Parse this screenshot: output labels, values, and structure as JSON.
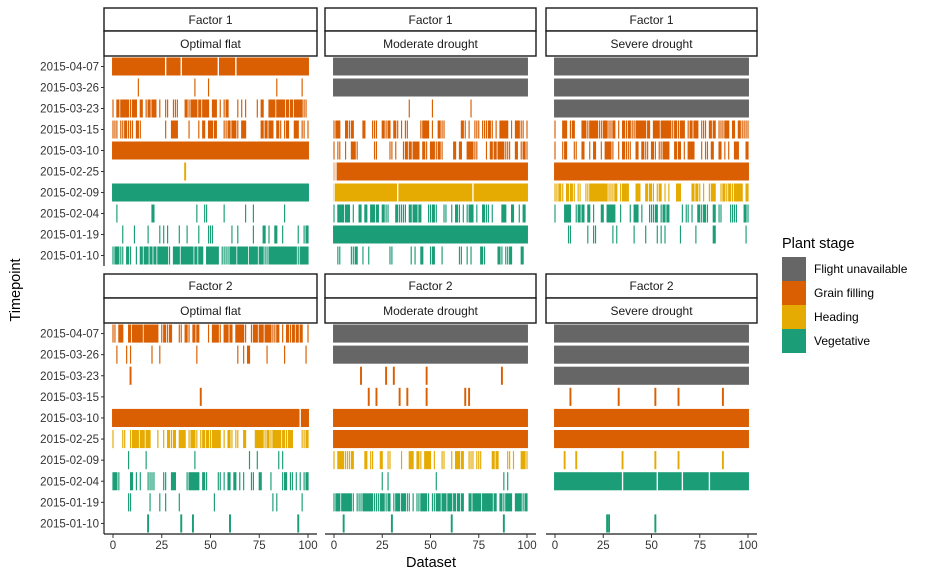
{
  "chart_data": {
    "type": "tile",
    "xlabel": "Dataset",
    "ylabel": "Timepoint",
    "xlim": [
      0,
      100
    ],
    "x_ticks": [
      0,
      25,
      50,
      75,
      100
    ],
    "timepoints": [
      "2015-04-07",
      "2015-03-26",
      "2015-03-23",
      "2015-03-15",
      "2015-03-10",
      "2015-02-25",
      "2015-02-09",
      "2015-02-04",
      "2015-01-19",
      "2015-01-10"
    ],
    "legend": {
      "title": "Plant stage",
      "entries": [
        {
          "label": "Flight unavailable",
          "color": "#666666"
        },
        {
          "label": "Grain filling",
          "color": "#d95f02"
        },
        {
          "label": "Heading",
          "color": "#e6ab02"
        },
        {
          "label": "Vegetative",
          "color": "#1b9e77"
        }
      ]
    },
    "facets": [
      {
        "factor": "Factor 1",
        "scenario": "Optimal flat",
        "rows": [
          {
            "t": "2015-04-07",
            "stage": "Grain filling",
            "cover": "full",
            "exclude": [
              27,
              35,
              54,
              63
            ]
          },
          {
            "t": "2015-03-26",
            "stage": "Grain filling",
            "cover": "sparse",
            "density": 0.03,
            "seed": 101
          },
          {
            "t": "2015-03-23",
            "stage": "Grain filling",
            "cover": "sparse",
            "density": 0.6,
            "seed": 102
          },
          {
            "t": "2015-03-15",
            "stage": "Grain filling",
            "cover": "sparse",
            "density": 0.55,
            "seed": 103
          },
          {
            "t": "2015-03-10",
            "stage": "Grain filling",
            "cover": "full",
            "exclude": []
          },
          {
            "t": "2015-02-25",
            "stage": "Heading",
            "cover": "list",
            "items": [
              37
            ]
          },
          {
            "t": "2015-02-09",
            "stage": "Vegetative",
            "cover": "full",
            "exclude": []
          },
          {
            "t": "2015-02-04",
            "stage": "Vegetative",
            "cover": "sparse",
            "density": 0.15,
            "seed": 104
          },
          {
            "t": "2015-01-19",
            "stage": "Vegetative",
            "cover": "sparse",
            "density": 0.25,
            "seed": 105
          },
          {
            "t": "2015-01-10",
            "stage": "Vegetative",
            "cover": "sparse",
            "density": 0.75,
            "seed": 106
          }
        ]
      },
      {
        "factor": "Factor 1",
        "scenario": "Moderate drought",
        "rows": [
          {
            "t": "2015-04-07",
            "stage": "Flight unavailable",
            "cover": "full",
            "exclude": []
          },
          {
            "t": "2015-03-26",
            "stage": "Flight unavailable",
            "cover": "full",
            "exclude": []
          },
          {
            "t": "2015-03-23",
            "stage": "Grain filling",
            "cover": "sparse",
            "density": 0.04,
            "seed": 201
          },
          {
            "t": "2015-03-15",
            "stage": "Grain filling",
            "cover": "sparse",
            "density": 0.35,
            "seed": 202
          },
          {
            "t": "2015-03-10",
            "stage": "Grain filling",
            "cover": "sparse",
            "density": 0.45,
            "seed": 203
          },
          {
            "t": "2015-02-25",
            "stage": "Grain filling",
            "cover": "full",
            "exclude": [
              0,
              1
            ]
          },
          {
            "t": "2015-02-09",
            "stage": "Heading",
            "cover": "full",
            "exclude": [
              0,
              33,
              72
            ]
          },
          {
            "t": "2015-02-04",
            "stage": "Vegetative",
            "cover": "sparse",
            "density": 0.5,
            "seed": 204
          },
          {
            "t": "2015-01-19",
            "stage": "Vegetative",
            "cover": "full",
            "exclude": []
          },
          {
            "t": "2015-01-10",
            "stage": "Vegetative",
            "cover": "sparse",
            "density": 0.3,
            "seed": 205
          }
        ]
      },
      {
        "factor": "Factor 1",
        "scenario": "Severe drought",
        "rows": [
          {
            "t": "2015-04-07",
            "stage": "Flight unavailable",
            "cover": "full",
            "exclude": []
          },
          {
            "t": "2015-03-26",
            "stage": "Flight unavailable",
            "cover": "full",
            "exclude": []
          },
          {
            "t": "2015-03-23",
            "stage": "Flight unavailable",
            "cover": "full",
            "exclude": []
          },
          {
            "t": "2015-03-15",
            "stage": "Grain filling",
            "cover": "sparse",
            "density": 0.72,
            "seed": 301
          },
          {
            "t": "2015-03-10",
            "stage": "Grain filling",
            "cover": "sparse",
            "density": 0.55,
            "seed": 302
          },
          {
            "t": "2015-02-25",
            "stage": "Grain filling",
            "cover": "full",
            "exclude": []
          },
          {
            "t": "2015-02-09",
            "stage": "Heading",
            "cover": "sparse",
            "density": 0.5,
            "seed": 303
          },
          {
            "t": "2015-02-04",
            "stage": "Vegetative",
            "cover": "sparse",
            "density": 0.45,
            "seed": 304
          },
          {
            "t": "2015-01-19",
            "stage": "Vegetative",
            "cover": "sparse",
            "density": 0.15,
            "seed": 305
          },
          {
            "t": "2015-01-10",
            "stage": "Vegetative",
            "cover": "none"
          }
        ]
      },
      {
        "factor": "Factor 2",
        "scenario": "Optimal flat",
        "rows": [
          {
            "t": "2015-04-07",
            "stage": "Grain filling",
            "cover": "sparse",
            "density": 0.6,
            "seed": 401
          },
          {
            "t": "2015-03-26",
            "stage": "Grain filling",
            "cover": "sparse",
            "density": 0.12,
            "seed": 402
          },
          {
            "t": "2015-03-23",
            "stage": "Grain filling",
            "cover": "list",
            "items": [
              9
            ]
          },
          {
            "t": "2015-03-15",
            "stage": "Grain filling",
            "cover": "list",
            "items": [
              45
            ]
          },
          {
            "t": "2015-03-10",
            "stage": "Grain filling",
            "cover": "full",
            "exclude": [
              96
            ]
          },
          {
            "t": "2015-02-25",
            "stage": "Heading",
            "cover": "sparse",
            "density": 0.55,
            "seed": 403
          },
          {
            "t": "2015-02-09",
            "stage": "Vegetative",
            "cover": "sparse",
            "density": 0.1,
            "seed": 404
          },
          {
            "t": "2015-02-04",
            "stage": "Vegetative",
            "cover": "sparse",
            "density": 0.4,
            "seed": 405
          },
          {
            "t": "2015-01-19",
            "stage": "Vegetative",
            "cover": "sparse",
            "density": 0.08,
            "seed": 406
          },
          {
            "t": "2015-01-10",
            "stage": "Vegetative",
            "cover": "list",
            "items": [
              18,
              35,
              41,
              60,
              95
            ]
          }
        ]
      },
      {
        "factor": "Factor 2",
        "scenario": "Moderate drought",
        "rows": [
          {
            "t": "2015-04-07",
            "stage": "Flight unavailable",
            "cover": "full",
            "exclude": []
          },
          {
            "t": "2015-03-26",
            "stage": "Flight unavailable",
            "cover": "full",
            "exclude": []
          },
          {
            "t": "2015-03-23",
            "stage": "Grain filling",
            "cover": "list",
            "items": [
              14,
              27,
              31,
              48,
              87
            ]
          },
          {
            "t": "2015-03-15",
            "stage": "Grain filling",
            "cover": "list",
            "items": [
              18,
              22,
              34,
              38,
              48,
              68,
              70
            ]
          },
          {
            "t": "2015-03-10",
            "stage": "Grain filling",
            "cover": "full",
            "exclude": []
          },
          {
            "t": "2015-02-25",
            "stage": "Grain filling",
            "cover": "full",
            "exclude": []
          },
          {
            "t": "2015-02-09",
            "stage": "Heading",
            "cover": "sparse",
            "density": 0.45,
            "seed": 501
          },
          {
            "t": "2015-02-04",
            "stage": "Vegetative",
            "cover": "sparse",
            "density": 0.08,
            "seed": 502
          },
          {
            "t": "2015-01-19",
            "stage": "Vegetative",
            "cover": "sparse",
            "density": 0.8,
            "seed": 503
          },
          {
            "t": "2015-01-10",
            "stage": "Vegetative",
            "cover": "list",
            "items": [
              5,
              30,
              61,
              88
            ]
          }
        ]
      },
      {
        "factor": "Factor 2",
        "scenario": "Severe drought",
        "rows": [
          {
            "t": "2015-04-07",
            "stage": "Flight unavailable",
            "cover": "full",
            "exclude": []
          },
          {
            "t": "2015-03-26",
            "stage": "Flight unavailable",
            "cover": "full",
            "exclude": []
          },
          {
            "t": "2015-03-23",
            "stage": "Flight unavailable",
            "cover": "full",
            "exclude": []
          },
          {
            "t": "2015-03-15",
            "stage": "Grain filling",
            "cover": "list",
            "items": [
              8,
              33,
              52,
              64,
              87
            ]
          },
          {
            "t": "2015-03-10",
            "stage": "Grain filling",
            "cover": "full",
            "exclude": []
          },
          {
            "t": "2015-02-25",
            "stage": "Grain filling",
            "cover": "full",
            "exclude": []
          },
          {
            "t": "2015-02-09",
            "stage": "Heading",
            "cover": "list",
            "items": [
              5,
              11,
              35,
              52,
              64,
              87
            ]
          },
          {
            "t": "2015-02-04",
            "stage": "Vegetative",
            "cover": "full",
            "exclude": [
              35,
              53,
              66,
              80
            ]
          },
          {
            "t": "2015-01-19",
            "stage": "Vegetative",
            "cover": "none"
          },
          {
            "t": "2015-01-10",
            "stage": "Vegetative",
            "cover": "list",
            "items": [
              27,
              28,
              52
            ]
          }
        ]
      }
    ]
  }
}
